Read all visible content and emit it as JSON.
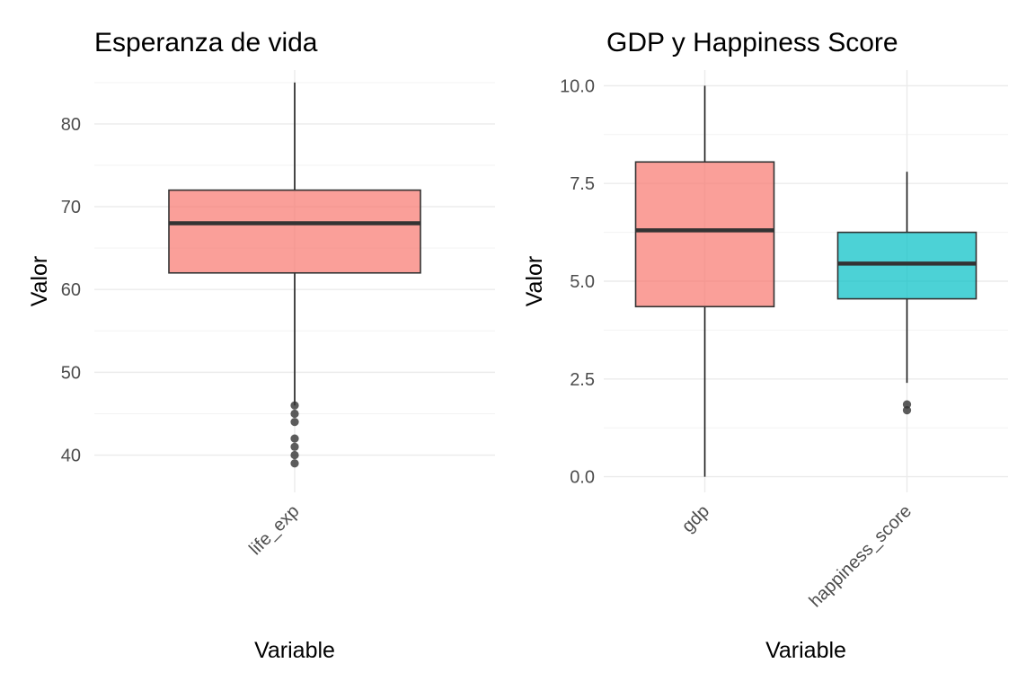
{
  "chart_data": [
    {
      "type": "boxplot",
      "title": "Esperanza de vida",
      "xlabel": "Variable",
      "ylabel": "Valor",
      "ylim": [
        35.5,
        86.5
      ],
      "yticks": [
        40,
        50,
        60,
        70,
        80
      ],
      "ytick_labels": [
        "40",
        "50",
        "60",
        "70",
        "80"
      ],
      "grid": true,
      "categories": [
        "life_exp"
      ],
      "boxes": [
        {
          "category": "life_exp",
          "whisker_low": 46,
          "q1": 62,
          "median": 68,
          "q3": 72,
          "whisker_high": 85,
          "outliers": [
            39,
            40,
            41,
            42,
            44,
            45,
            46
          ],
          "color": "#F8766D"
        }
      ]
    },
    {
      "type": "boxplot",
      "title": "GDP y Happiness Score",
      "xlabel": "Variable",
      "ylabel": "Valor",
      "ylim": [
        -0.4,
        10.4
      ],
      "yticks": [
        0,
        2.5,
        5,
        7.5,
        10
      ],
      "ytick_labels": [
        "0.0",
        "2.5",
        "5.0",
        "7.5",
        "10.0"
      ],
      "grid": true,
      "categories": [
        "gdp",
        "happiness_score"
      ],
      "boxes": [
        {
          "category": "gdp",
          "whisker_low": 0,
          "q1": 4.35,
          "median": 6.3,
          "q3": 8.05,
          "whisker_high": 10,
          "outliers": [],
          "color": "#F8766D"
        },
        {
          "category": "happiness_score",
          "whisker_low": 2.4,
          "q1": 4.55,
          "median": 5.45,
          "q3": 6.25,
          "whisker_high": 7.8,
          "outliers": [
            1.7,
            1.85
          ],
          "color": "#00BFC4"
        }
      ]
    }
  ]
}
